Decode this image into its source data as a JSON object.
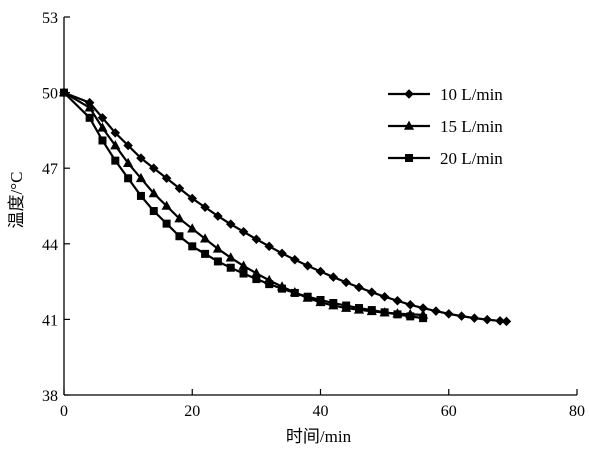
{
  "chart_data": {
    "type": "line",
    "xlabel": "时间/min",
    "ylabel": "温度/°C",
    "xlim": [
      0,
      80
    ],
    "ylim": [
      38,
      53
    ],
    "xticks": [
      0,
      20,
      40,
      60,
      80
    ],
    "yticks": [
      38,
      41,
      44,
      47,
      50,
      53
    ],
    "grid": false,
    "legend_position": "top-right",
    "series": [
      {
        "name": "10 L/min",
        "marker": "diamond",
        "x": [
          0,
          4,
          6,
          8,
          10,
          12,
          14,
          16,
          18,
          20,
          22,
          24,
          26,
          28,
          30,
          32,
          34,
          36,
          38,
          40,
          42,
          44,
          46,
          48,
          50,
          52,
          54,
          56,
          58,
          60,
          62,
          64,
          66,
          68,
          69
        ],
        "y": [
          50.0,
          49.6,
          49.0,
          48.4,
          47.9,
          47.4,
          47.0,
          46.6,
          46.2,
          45.8,
          45.45,
          45.1,
          44.78,
          44.48,
          44.18,
          43.9,
          43.62,
          43.37,
          43.13,
          42.9,
          42.68,
          42.47,
          42.27,
          42.08,
          41.9,
          41.74,
          41.58,
          41.45,
          41.33,
          41.22,
          41.13,
          41.05,
          40.99,
          40.94,
          40.92
        ]
      },
      {
        "name": "15 L/min",
        "marker": "triangle",
        "x": [
          0,
          4,
          6,
          8,
          10,
          12,
          14,
          16,
          18,
          20,
          22,
          24,
          26,
          28,
          30,
          32,
          34,
          36,
          38,
          40,
          42,
          44,
          46,
          48,
          50,
          52,
          54,
          56
        ],
        "y": [
          50.0,
          49.4,
          48.6,
          47.9,
          47.2,
          46.6,
          46.0,
          45.5,
          45.0,
          44.6,
          44.2,
          43.8,
          43.45,
          43.12,
          42.83,
          42.55,
          42.3,
          42.07,
          41.85,
          41.68,
          41.55,
          41.45,
          41.38,
          41.32,
          41.27,
          41.23,
          41.2,
          41.18
        ]
      },
      {
        "name": "20 L/min",
        "marker": "square",
        "x": [
          0,
          4,
          6,
          8,
          10,
          12,
          14,
          16,
          18,
          20,
          22,
          24,
          26,
          28,
          30,
          32,
          34,
          36,
          38,
          40,
          42,
          44,
          46,
          48,
          50,
          52,
          54,
          56
        ],
        "y": [
          50.0,
          49.0,
          48.1,
          47.3,
          46.6,
          45.9,
          45.3,
          44.8,
          44.3,
          43.9,
          43.6,
          43.3,
          43.05,
          42.82,
          42.6,
          42.4,
          42.22,
          42.05,
          41.9,
          41.77,
          41.65,
          41.55,
          41.45,
          41.37,
          41.28,
          41.2,
          41.12,
          41.05
        ]
      }
    ]
  }
}
